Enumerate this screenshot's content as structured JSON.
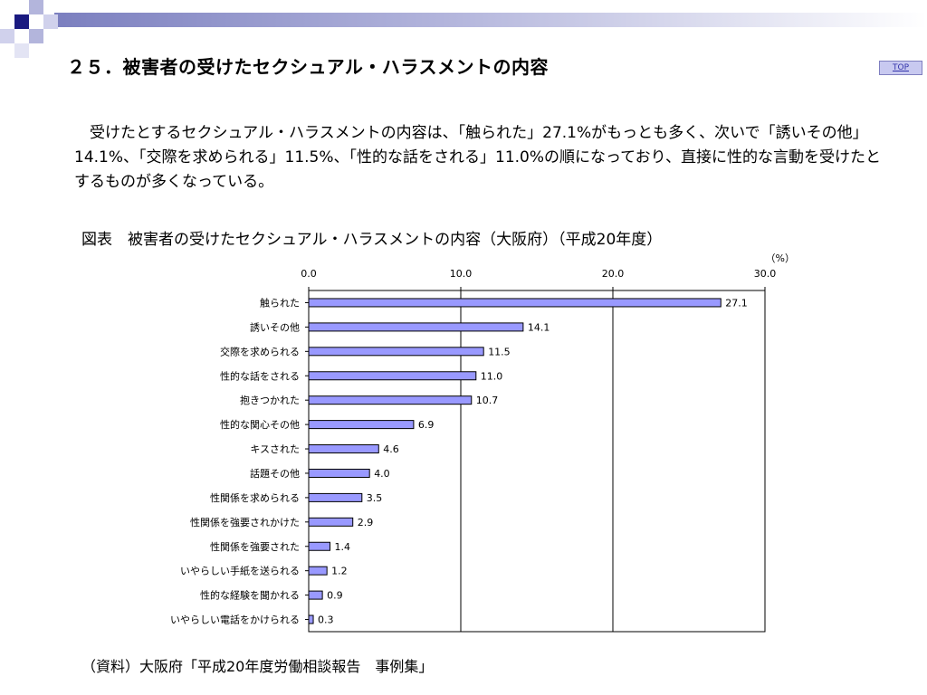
{
  "page": {
    "title": "２５．被害者の受けたセクシュアル・ハラスメントの内容",
    "top_link": "TOP",
    "summary": "　受けたとするセクシュアル・ハラスメントの内容は、「触られた」27.1%がもっとも多く、次いで「誘いその他」14.1%、「交際を求められる」11.5%、「性的な話をされる」11.0%の順になっており、直接に性的な言動を受けたとするものが多くなっている。",
    "chart_title": "図表　被害者の受けたセクシュアル・ハラスメントの内容（大阪府）（平成20年度）",
    "source": "（資料）大阪府「平成20年度労働相談報告　事例集」",
    "colors": {
      "bar_fill": "#9999ff",
      "bar_stroke": "#000000",
      "header_band": "#7b7fbf",
      "accent_square": "#1a1a80"
    }
  },
  "chart_data": {
    "type": "bar",
    "orientation": "horizontal",
    "unit": "（%）",
    "xlim": [
      0,
      30
    ],
    "ticks": [
      "0.0",
      "10.0",
      "20.0",
      "30.0"
    ],
    "tick_values": [
      0,
      10,
      20,
      30
    ],
    "grid": true,
    "categories": [
      "触られた",
      "誘いその他",
      "交際を求められる",
      "性的な話をされる",
      "抱きつかれた",
      "性的な関心その他",
      "キスされた",
      "話題その他",
      "性関係を求められる",
      "性関係を強要されかけた",
      "性関係を強要された",
      "いやらしい手紙を送られる",
      "性的な経験を聞かれる",
      "いやらしい電話をかけられる"
    ],
    "values": [
      27.1,
      14.1,
      11.5,
      11.0,
      10.7,
      6.9,
      4.6,
      4.0,
      3.5,
      2.9,
      1.4,
      1.2,
      0.9,
      0.3
    ],
    "value_labels": [
      "27.1",
      "14.1",
      "11.5",
      "11.0",
      "10.7",
      "6.9",
      "4.6",
      "4.0",
      "3.5",
      "2.9",
      "1.4",
      "1.2",
      "0.9",
      "0.3"
    ]
  }
}
